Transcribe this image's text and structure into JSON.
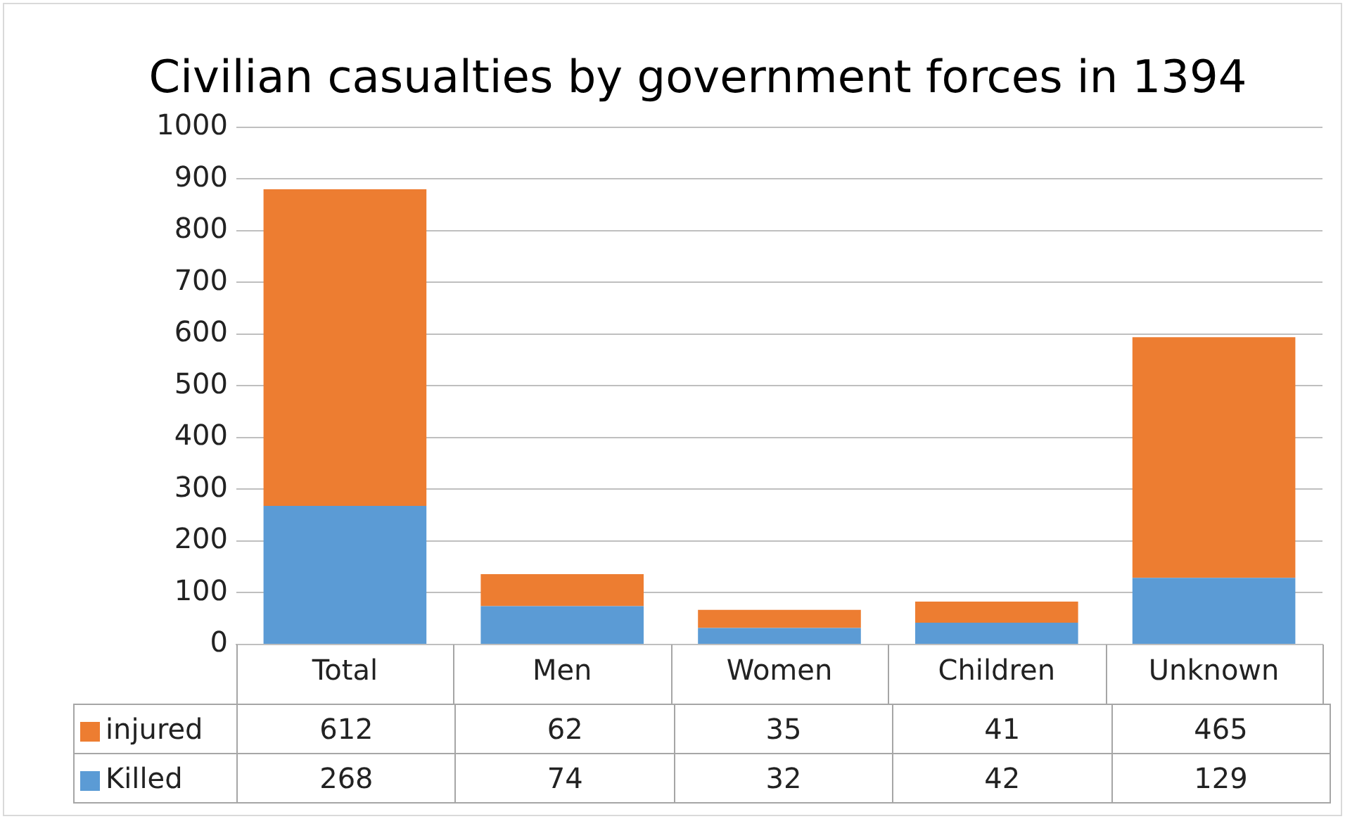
{
  "chart_data": {
    "type": "bar",
    "title": "Civilian casualties by government forces in 1394",
    "categories": [
      "Total",
      "Men",
      "Women",
      "Children",
      "Unknown"
    ],
    "stacked": true,
    "series": [
      {
        "name": "Killed",
        "color": "#5b9bd5",
        "values": [
          268,
          74,
          32,
          42,
          129
        ]
      },
      {
        "name": "injured",
        "color": "#ed7d31",
        "values": [
          612,
          62,
          35,
          41,
          465
        ]
      }
    ],
    "ylim": [
      0,
      1000
    ],
    "yticks": [
      0,
      100,
      200,
      300,
      400,
      500,
      600,
      700,
      800,
      900,
      1000
    ],
    "grid": "y",
    "data_labels": true,
    "legend": "bottom"
  }
}
